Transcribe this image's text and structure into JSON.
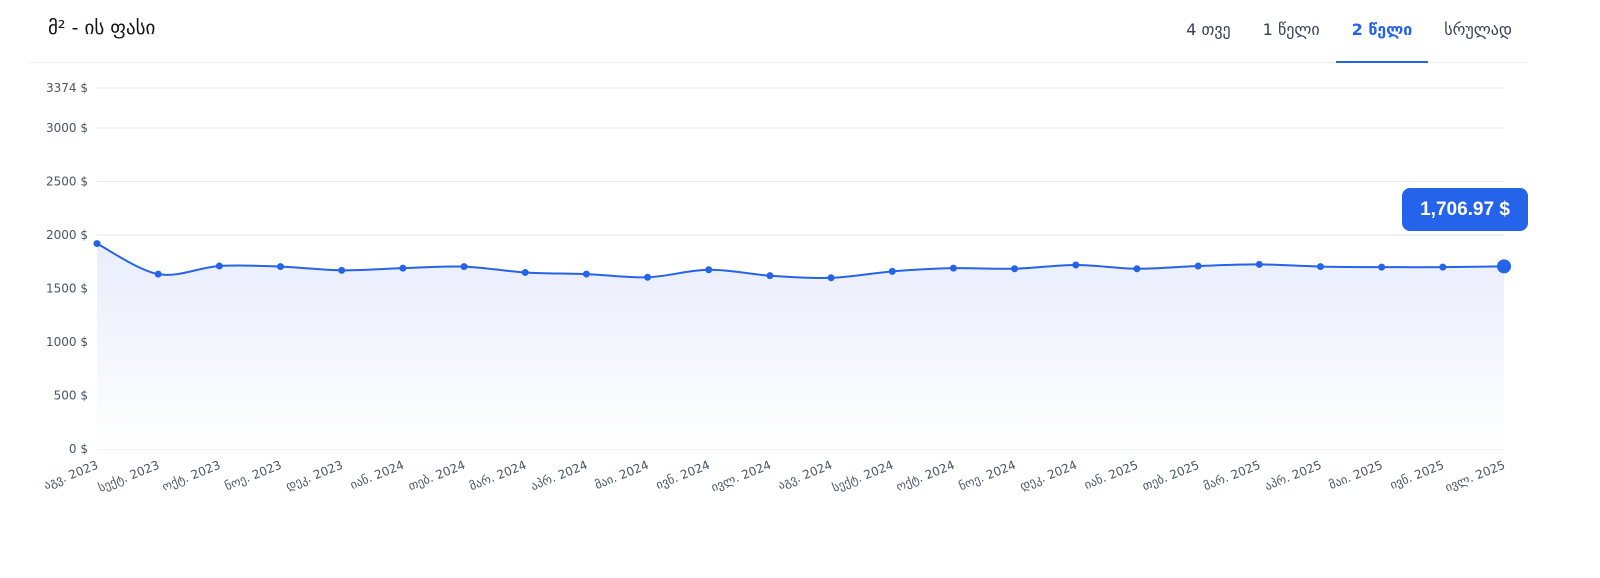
{
  "header": {
    "title": "მ² - ის ფასი",
    "tabs": [
      {
        "label": "4 თვე",
        "active": false
      },
      {
        "label": "1 წელი",
        "active": false
      },
      {
        "label": "2 წელი",
        "active": true
      },
      {
        "label": "სრულად",
        "active": false
      }
    ]
  },
  "tooltip": {
    "value": "1,706.97 $"
  },
  "colors": {
    "accent": "#2563eb",
    "grid": "#e5e7eb",
    "fill_top": "#e9edfc"
  },
  "chart_data": {
    "type": "area",
    "y_unit": "$",
    "y_ticks": [
      0,
      500,
      1000,
      1500,
      2000,
      2500,
      3000,
      3374
    ],
    "y_tick_labels": [
      "0 $",
      "500 $",
      "1000 $",
      "1500 $",
      "2000 $",
      "2500 $",
      "3000 $",
      "3374 $"
    ],
    "ylim": [
      0,
      3374
    ],
    "grid": true,
    "categories": [
      "აგვ. 2023",
      "სექტ. 2023",
      "ოქტ. 2023",
      "ნოე. 2023",
      "დეკ. 2023",
      "იან. 2024",
      "თებ. 2024",
      "მარ. 2024",
      "აპრ. 2024",
      "მაი. 2024",
      "ივნ. 2024",
      "ივლ. 2024",
      "აგვ. 2024",
      "სექტ. 2024",
      "ოქტ. 2024",
      "ნოე. 2024",
      "დეკ. 2024",
      "იან. 2025",
      "თებ. 2025",
      "მარ. 2025",
      "აპრ. 2025",
      "მაი. 2025",
      "ივნ. 2025",
      "ივლ. 2025"
    ],
    "series": [
      {
        "values": [
          1920,
          1635,
          1710,
          1705,
          1670,
          1690,
          1705,
          1650,
          1635,
          1605,
          1675,
          1620,
          1600,
          1660,
          1690,
          1685,
          1720,
          1685,
          1710,
          1725,
          1705,
          1700,
          1700,
          1706.97
        ]
      }
    ]
  }
}
